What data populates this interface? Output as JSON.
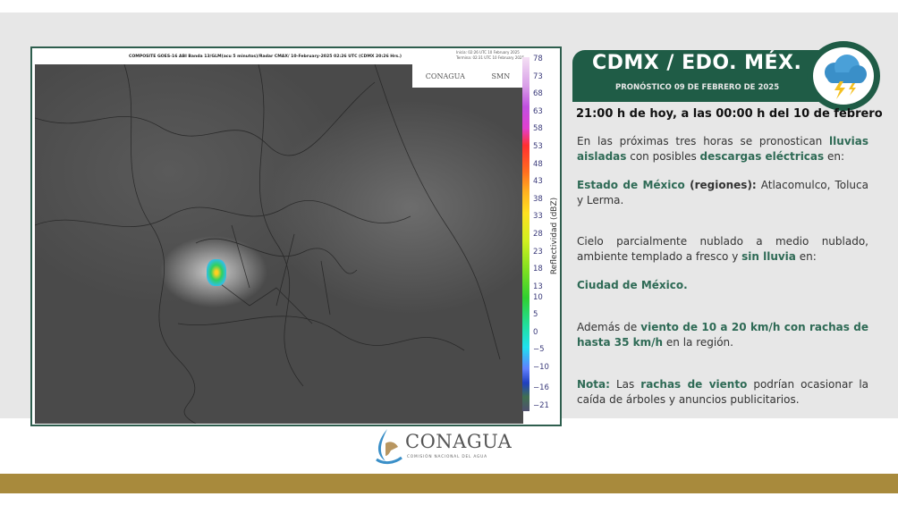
{
  "map": {
    "title": "COMPOSITE GOES-16 ABI Banda 13/GLM(acu 5 minutos)/Radar CMAX/ 10-February-2025 02:26 UTC  (CDMX  20:26 Hrs.)",
    "start": "Inicia: 02:26 UTC 10 February 2025",
    "end": "Termina: 02:31 UTC 10 February 2025",
    "logo_left": "CONAGUA",
    "logo_right": "SMN",
    "colorbar_label": "Reflectividad (dBZ)",
    "colorbar_ticks": [
      "78",
      "73",
      "68",
      "63",
      "58",
      "53",
      "48",
      "43",
      "38",
      "33",
      "28",
      "23",
      "18",
      "13",
      "10",
      "5",
      "0",
      "−5",
      "−10",
      "−16",
      "−21"
    ]
  },
  "banner": {
    "title": "CDMX / EDO. MÉX.",
    "subtitle": "PRONÓSTICO 09 DE FEBRERO DE 2025",
    "icon": "storm-cloud-lightning-icon",
    "color": "#1f5c46"
  },
  "when": "21:00 h de hoy, a las 00:00 h del 10 de febrero",
  "p1": [
    "En las próximas tres horas se pronostican ",
    "lluvias aisladas",
    " con posibles ",
    "descargas eléctricas",
    " en:"
  ],
  "p2": [
    "Estado de México",
    " (regiones):",
    " Atlacomulco, Toluca y Lerma."
  ],
  "p3": [
    "Cielo parcialmente nublado a medio nublado, ambiente templado a fresco y ",
    "sin lluvia",
    " en:"
  ],
  "p4": [
    "Ciudad de México."
  ],
  "p5": [
    "Además de ",
    "viento de 10 a 20 km/h con rachas de hasta 35 km/h",
    " en la región."
  ],
  "p6": [
    "Nota:",
    " Las ",
    "rachas de viento",
    " podrían ocasionar la caída de árboles y anuncios publicitarios."
  ],
  "footer": {
    "logo": "CONAGUA",
    "logo_sub": "COMISIÓN NACIONAL DEL AGUA",
    "band_color": "#a88a3c"
  }
}
